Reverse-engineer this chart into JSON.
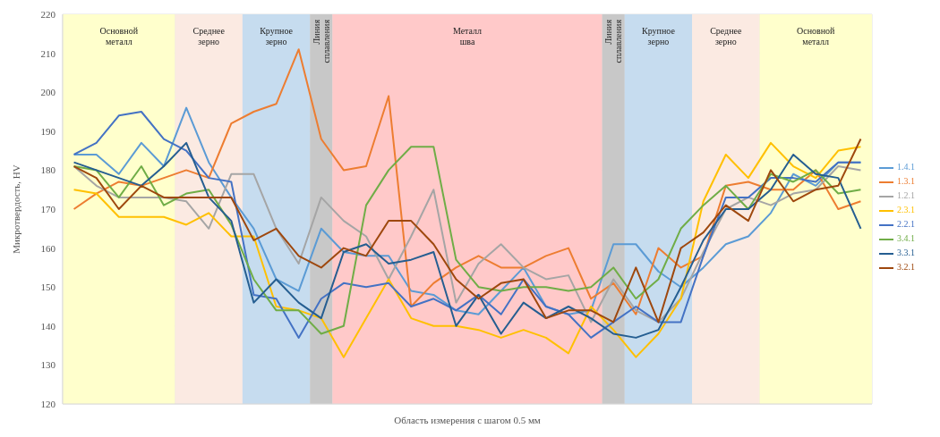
{
  "chart_data": {
    "type": "line",
    "ylabel": "Микротвердость, HV",
    "xlabel": "Область измерения с шагом 0.5 мм",
    "categories": [
      null,
      null,
      null,
      null,
      null,
      null,
      null,
      null,
      null,
      null,
      null,
      null,
      null,
      null,
      null,
      null,
      null,
      null,
      null,
      null,
      null,
      null,
      null,
      null,
      null,
      null,
      null,
      null,
      null,
      null,
      null,
      null,
      null,
      null,
      null,
      null
    ],
    "ylim": [
      120,
      220
    ],
    "yticks": [
      120,
      130,
      140,
      150,
      160,
      170,
      180,
      190,
      200,
      210,
      220
    ],
    "tick_labels": "y",
    "grid": true,
    "legend": "right",
    "line_style": "solid",
    "annotations": [
      "Основной металл",
      "Среднее зерно",
      "Крупное зерно",
      "Линия сплавления",
      "Металл шва",
      "Линия сплавления",
      "Крупное зерно",
      "Среднее зерно",
      "Основной металл"
    ],
    "series": [
      {
        "name": "1.4.1",
        "color": "#5b9bd5",
        "values": [
          184,
          184,
          179,
          187,
          181,
          196,
          182,
          173,
          165,
          152,
          149,
          165,
          159,
          158,
          158,
          149,
          148,
          144,
          143,
          149,
          155,
          145,
          143,
          144,
          161,
          161,
          154,
          150,
          155,
          161,
          163,
          169,
          179,
          176,
          182,
          182
        ]
      },
      {
        "name": "1.3.1",
        "color": "#ed7d31",
        "values": [
          170,
          174,
          177,
          176,
          178,
          180,
          178,
          192,
          195,
          197,
          211,
          188,
          180,
          181,
          199,
          145,
          151,
          155,
          158,
          155,
          155,
          158,
          160,
          147,
          151,
          143,
          160,
          155,
          158,
          176,
          177,
          175,
          175,
          180,
          170,
          172
        ]
      },
      {
        "name": "1.2.1",
        "color": "#a5a5a5",
        "values": [
          181,
          176,
          173,
          173,
          173,
          172,
          165,
          179,
          179,
          165,
          156,
          173,
          167,
          163,
          152,
          163,
          175,
          146,
          156,
          161,
          155,
          152,
          153,
          141,
          152,
          144,
          141,
          147,
          159,
          170,
          173,
          171,
          174,
          175,
          181,
          180
        ]
      },
      {
        "name": "2.3.1",
        "color": "#ffc000",
        "values": [
          175,
          174,
          168,
          168,
          168,
          166,
          169,
          163,
          163,
          145,
          144,
          142,
          132,
          142,
          152,
          142,
          140,
          140,
          139,
          137,
          139,
          137,
          133,
          145,
          139,
          132,
          138,
          147,
          172,
          184,
          178,
          187,
          181,
          178,
          185,
          186
        ]
      },
      {
        "name": "2.2.1",
        "color": "#4472c4",
        "values": [
          184,
          187,
          194,
          195,
          188,
          185,
          178,
          177,
          148,
          147,
          137,
          147,
          151,
          150,
          151,
          145,
          147,
          144,
          148,
          143,
          152,
          145,
          143,
          137,
          141,
          145,
          141,
          141,
          158,
          173,
          173,
          178,
          178,
          177,
          182,
          182
        ]
      },
      {
        "name": "3.4.1",
        "color": "#70ad47",
        "values": [
          181,
          180,
          173,
          181,
          171,
          174,
          175,
          166,
          152,
          144,
          144,
          138,
          140,
          171,
          180,
          186,
          186,
          157,
          150,
          149,
          150,
          150,
          149,
          150,
          155,
          147,
          152,
          165,
          171,
          176,
          170,
          179,
          177,
          180,
          174,
          175
        ]
      },
      {
        "name": "3.3.1",
        "color": "#255e91",
        "values": [
          182,
          180,
          178,
          176,
          181,
          187,
          173,
          167,
          146,
          152,
          146,
          142,
          159,
          161,
          156,
          157,
          159,
          140,
          148,
          138,
          146,
          142,
          145,
          142,
          138,
          137,
          139,
          150,
          162,
          170,
          170,
          175,
          184,
          179,
          178,
          165
        ]
      },
      {
        "name": "3.2.1",
        "color": "#9e480e",
        "values": [
          181,
          178,
          170,
          176,
          173,
          173,
          173,
          173,
          162,
          165,
          158,
          155,
          160,
          158,
          167,
          167,
          161,
          152,
          147,
          151,
          152,
          142,
          144,
          144,
          141,
          155,
          141,
          160,
          164,
          171,
          167,
          180,
          172,
          175,
          176,
          188
        ]
      }
    ]
  }
}
